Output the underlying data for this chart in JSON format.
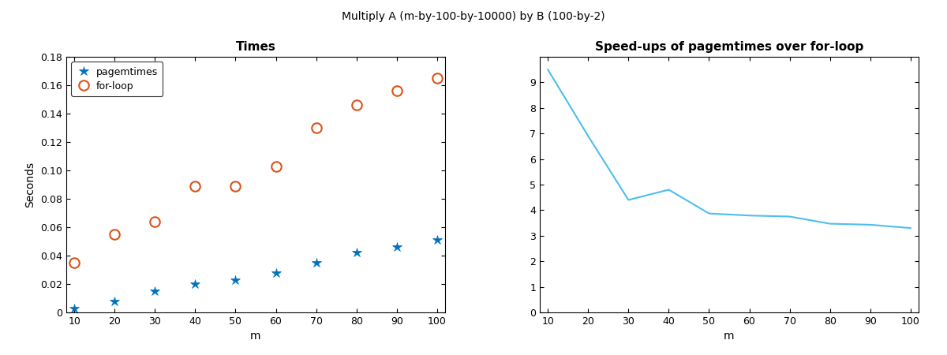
{
  "title": "Multiply A (m-by-100-by-10000) by B (100-by-2)",
  "left_title": "Times",
  "right_title": "Speed-ups of pagemtimes over for-loop",
  "m_values": [
    10,
    20,
    30,
    40,
    50,
    60,
    70,
    80,
    90,
    100
  ],
  "pagemtimes": [
    0.003,
    0.008,
    0.015,
    0.02,
    0.023,
    0.028,
    0.035,
    0.042,
    0.046,
    0.051
  ],
  "forloop": [
    0.035,
    0.055,
    0.064,
    0.089,
    0.089,
    0.103,
    0.13,
    0.146,
    0.156,
    0.165
  ],
  "speedups": [
    9.5,
    6.9,
    4.4,
    4.8,
    3.87,
    3.79,
    3.75,
    3.47,
    3.43,
    3.3
  ],
  "pagemt_color": "#0072BD",
  "forloop_color": "#D95319",
  "speedup_color": "#4DBEEE",
  "left_ylabel": "Seconds",
  "left_xlabel": "m",
  "right_xlabel": "m",
  "left_ylim": [
    0,
    0.18
  ],
  "right_ylim": [
    0,
    10
  ],
  "left_yticks": [
    0,
    0.02,
    0.04,
    0.06,
    0.08,
    0.1,
    0.12,
    0.14,
    0.16,
    0.18
  ],
  "left_xticks": [
    10,
    20,
    30,
    40,
    50,
    60,
    70,
    80,
    90,
    100
  ],
  "right_yticks": [
    0,
    1,
    2,
    3,
    4,
    5,
    6,
    7,
    8,
    9
  ],
  "right_xticks": [
    10,
    20,
    30,
    40,
    50,
    60,
    70,
    80,
    90,
    100
  ],
  "title_fontsize": 10,
  "subtitle_fontsize": 11,
  "tick_fontsize": 9,
  "label_fontsize": 10
}
